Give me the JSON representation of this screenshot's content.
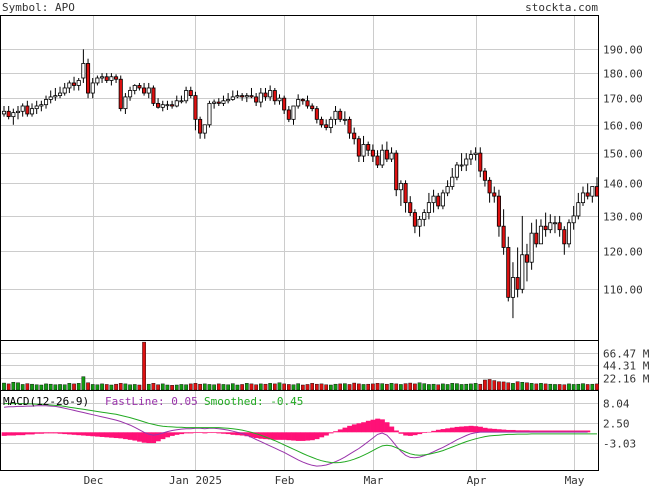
{
  "header": {
    "symbol_label": "Symbol: APO",
    "site": "stockta.com"
  },
  "price_axis": {
    "ticks": [
      190,
      180,
      170,
      160,
      150,
      140,
      130,
      120,
      110
    ],
    "tick_labels": [
      "190.00",
      "180.00",
      "170.00",
      "160.00",
      "150.00",
      "140.00",
      "130.00",
      "120.00",
      "110.00"
    ],
    "log_scale": true,
    "range": [
      98,
      205
    ]
  },
  "volume_axis": {
    "tick_labels": [
      "66.47 M",
      "44.31 M",
      "22.16 M"
    ],
    "ticks": [
      66.47,
      44.31,
      22.16
    ],
    "max": 88
  },
  "macd_panel": {
    "label": "MACD(12-26-9)",
    "fast_label": "FastLine: 0.05",
    "smoothed_label": "Smoothed: -0.45",
    "tick_labels": [
      "8.04",
      "2.50",
      "-3.03"
    ],
    "ticks": [
      8.04,
      2.5,
      -3.03
    ],
    "range": [
      -10.5,
      11.5
    ],
    "colors": {
      "fast": "#9933aa",
      "smoothed": "#22aa22",
      "histogram": "#ff1177",
      "label": "#000000"
    }
  },
  "x_axis": {
    "labels": [
      "Dec",
      "Jan 2025",
      "Feb",
      "Mar",
      "Apr",
      "May"
    ],
    "label_dates": [
      "2024-12-01",
      "2025-01-02",
      "2025-02-01",
      "2025-03-01",
      "2025-04-01",
      "2025-05-01"
    ]
  },
  "colors": {
    "up_candle": "#ffffff",
    "down_candle": "#dd1111",
    "volume_up": "#119911",
    "volume_down": "#dd1111",
    "grid": "#cccccc",
    "text": "#333333",
    "frame": "#000000"
  },
  "chart_data": {
    "type": "candlestick",
    "title": "Symbol: APO",
    "date_range": [
      "2024-11-01",
      "2025-05-08"
    ],
    "ohlc": {
      "dates": [
        "2024-11-01",
        "2024-11-04",
        "2024-11-05",
        "2024-11-06",
        "2024-11-07",
        "2024-11-08",
        "2024-11-11",
        "2024-11-12",
        "2024-11-13",
        "2024-11-14",
        "2024-11-15",
        "2024-11-18",
        "2024-11-19",
        "2024-11-20",
        "2024-11-21",
        "2024-11-22",
        "2024-11-25",
        "2024-11-26",
        "2024-11-27",
        "2024-11-29",
        "2024-12-02",
        "2024-12-03",
        "2024-12-04",
        "2024-12-05",
        "2024-12-06",
        "2024-12-09",
        "2024-12-10",
        "2024-12-11",
        "2024-12-12",
        "2024-12-13",
        "2024-12-16",
        "2024-12-17",
        "2024-12-18",
        "2024-12-19",
        "2024-12-20",
        "2024-12-23",
        "2024-12-24",
        "2024-12-26",
        "2024-12-27",
        "2024-12-30",
        "2024-12-31",
        "2025-01-02",
        "2025-01-03",
        "2025-01-06",
        "2025-01-07",
        "2025-01-08",
        "2025-01-10",
        "2025-01-13",
        "2025-01-14",
        "2025-01-15",
        "2025-01-16",
        "2025-01-17",
        "2025-01-21",
        "2025-01-22",
        "2025-01-23",
        "2025-01-24",
        "2025-01-27",
        "2025-01-28",
        "2025-01-29",
        "2025-01-30",
        "2025-01-31",
        "2025-02-03",
        "2025-02-04",
        "2025-02-05",
        "2025-02-06",
        "2025-02-07",
        "2025-02-10",
        "2025-02-11",
        "2025-02-12",
        "2025-02-13",
        "2025-02-14",
        "2025-02-18",
        "2025-02-19",
        "2025-02-20",
        "2025-02-21",
        "2025-02-24",
        "2025-02-25",
        "2025-02-26",
        "2025-02-27",
        "2025-02-28",
        "2025-03-03",
        "2025-03-04",
        "2025-03-05",
        "2025-03-06",
        "2025-03-07",
        "2025-03-10",
        "2025-03-11",
        "2025-03-12",
        "2025-03-13",
        "2025-03-14",
        "2025-03-17",
        "2025-03-18",
        "2025-03-19",
        "2025-03-20",
        "2025-03-21",
        "2025-03-24",
        "2025-03-25",
        "2025-03-26",
        "2025-03-27",
        "2025-03-28",
        "2025-03-31",
        "2025-04-01",
        "2025-04-02",
        "2025-04-03",
        "2025-04-04",
        "2025-04-07",
        "2025-04-08",
        "2025-04-09",
        "2025-04-10",
        "2025-04-11",
        "2025-04-14",
        "2025-04-15",
        "2025-04-16",
        "2025-04-17",
        "2025-04-21",
        "2025-04-22",
        "2025-04-23",
        "2025-04-24",
        "2025-04-25",
        "2025-04-28",
        "2025-04-29",
        "2025-04-30",
        "2025-05-01",
        "2025-05-02",
        "2025-05-05",
        "2025-05-06",
        "2025-05-07",
        "2025-05-08"
      ],
      "open": [
        164.0,
        165.0,
        163.0,
        164.5,
        165.0,
        167.0,
        164.0,
        166.0,
        167.0,
        167.5,
        169.5,
        170.5,
        171.0,
        172.0,
        174.0,
        176.0,
        175.0,
        178.0,
        184.0,
        172.0,
        176.0,
        178.0,
        178.5,
        177.0,
        178.5,
        177.5,
        166.0,
        170.5,
        173.0,
        175.0,
        174.0,
        172.0,
        174.0,
        168.0,
        166.5,
        167.5,
        167.5,
        167.0,
        169.0,
        169.0,
        173.0,
        171.0,
        162.0,
        157.0,
        160.0,
        168.0,
        168.5,
        168.0,
        169.0,
        169.5,
        170.5,
        171.0,
        170.5,
        171.0,
        170.5,
        168.5,
        172.0,
        170.5,
        173.0,
        169.0,
        170.0,
        165.5,
        162.0,
        167.0,
        169.5,
        169.0,
        167.0,
        166.0,
        162.0,
        160.0,
        159.0,
        162.0,
        165.0,
        162.0,
        162.0,
        157.0,
        155.0,
        149.0,
        153.0,
        151.0,
        149.0,
        146.0,
        151.0,
        148.0,
        150.0,
        138.0,
        140.0,
        134.0,
        131.0,
        127.0,
        129.0,
        131.0,
        134.0,
        136.0,
        133.0,
        137.0,
        139.0,
        142.0,
        146.0,
        146.0,
        148.0,
        149.5,
        150.0,
        144.0,
        141.0,
        137.0,
        136.0,
        127.0,
        121.0,
        108.0,
        113.0,
        110.0,
        119.0,
        117.0,
        125.0,
        122.0,
        127.0,
        126.0,
        128.0,
        128.0,
        126.0,
        122.0,
        128.0,
        130.0,
        134.0,
        137.0,
        136.0,
        139.0
      ],
      "high": [
        167.0,
        167.0,
        166.0,
        167.0,
        168.0,
        169.0,
        168.0,
        169.0,
        169.0,
        171.0,
        173.0,
        174.0,
        174.5,
        176.0,
        177.0,
        178.5,
        178.0,
        190.0,
        186.0,
        178.0,
        179.0,
        180.0,
        180.0,
        180.0,
        179.5,
        179.0,
        172.0,
        174.5,
        175.5,
        176.0,
        176.0,
        176.0,
        175.0,
        170.0,
        169.0,
        169.0,
        169.0,
        171.0,
        171.0,
        174.5,
        174.5,
        172.5,
        163.0,
        160.0,
        169.0,
        169.5,
        170.0,
        171.0,
        172.0,
        173.0,
        173.0,
        172.0,
        172.0,
        174.0,
        172.0,
        174.0,
        174.0,
        175.0,
        174.0,
        171.5,
        171.0,
        167.0,
        167.0,
        171.5,
        170.0,
        171.0,
        168.0,
        167.0,
        163.0,
        162.0,
        163.0,
        167.0,
        166.0,
        165.0,
        163.0,
        159.0,
        156.0,
        156.0,
        154.0,
        153.0,
        151.0,
        153.0,
        154.0,
        152.0,
        151.0,
        141.0,
        141.0,
        136.0,
        132.0,
        130.0,
        132.0,
        137.0,
        138.0,
        137.0,
        138.0,
        141.0,
        145.0,
        147.0,
        150.0,
        150.0,
        151.0,
        152.0,
        152.0,
        145.0,
        142.0,
        139.0,
        138.0,
        132.0,
        124.0,
        117.0,
        121.0,
        130.0,
        122.0,
        128.0,
        129.0,
        129.0,
        131.0,
        130.5,
        130.0,
        130.0,
        127.0,
        129.0,
        133.0,
        137.0,
        139.0,
        140.0,
        139.0,
        142.0
      ],
      "low": [
        163.0,
        162.0,
        160.0,
        162.0,
        163.0,
        163.0,
        163.0,
        164.0,
        165.0,
        166.0,
        168.0,
        169.0,
        170.0,
        171.0,
        172.0,
        173.0,
        173.0,
        176.0,
        170.0,
        170.0,
        175.0,
        176.0,
        176.0,
        175.0,
        176.0,
        165.0,
        164.0,
        169.0,
        171.5,
        173.0,
        171.0,
        170.0,
        167.0,
        166.0,
        165.0,
        165.5,
        166.0,
        166.5,
        168.0,
        168.0,
        170.0,
        158.0,
        155.0,
        155.0,
        159.0,
        166.0,
        167.0,
        167.0,
        168.0,
        169.0,
        170.0,
        169.0,
        168.5,
        170.0,
        167.0,
        166.5,
        169.0,
        169.0,
        167.5,
        167.5,
        164.0,
        161.0,
        160.0,
        166.0,
        167.5,
        166.0,
        165.0,
        160.5,
        159.0,
        158.0,
        157.0,
        160.0,
        161.0,
        160.0,
        155.0,
        153.0,
        147.0,
        147.0,
        149.0,
        147.0,
        145.0,
        145.0,
        147.0,
        147.0,
        136.0,
        133.0,
        131.0,
        130.0,
        125.0,
        124.0,
        127.0,
        129.0,
        131.0,
        132.0,
        132.0,
        136.0,
        138.0,
        141.0,
        144.0,
        144.0,
        146.0,
        147.5,
        142.0,
        139.0,
        134.0,
        134.0,
        124.0,
        119.0,
        107.0,
        103.0,
        108.0,
        109.0,
        112.0,
        115.0,
        121.0,
        122.0,
        124.0,
        125.0,
        125.0,
        124.0,
        119.0,
        121.0,
        126.0,
        129.0,
        133.0,
        135.0,
        134.0,
        137.0
      ],
      "close": [
        165.0,
        163.0,
        164.5,
        165.0,
        167.0,
        164.0,
        166.0,
        167.0,
        167.5,
        169.5,
        170.5,
        171.0,
        172.0,
        174.0,
        176.0,
        175.0,
        177.0,
        184.0,
        172.0,
        176.0,
        178.0,
        178.5,
        177.0,
        178.5,
        177.5,
        166.0,
        170.5,
        173.0,
        175.0,
        174.0,
        172.0,
        174.0,
        168.0,
        166.5,
        167.5,
        167.5,
        167.0,
        169.0,
        169.0,
        173.0,
        171.0,
        162.0,
        157.0,
        160.0,
        168.0,
        168.5,
        168.0,
        169.0,
        169.5,
        170.5,
        171.0,
        170.5,
        171.0,
        170.5,
        168.5,
        172.0,
        170.5,
        173.0,
        169.0,
        170.0,
        165.5,
        162.0,
        167.0,
        169.5,
        169.0,
        167.0,
        166.0,
        162.0,
        160.0,
        159.0,
        162.0,
        165.0,
        162.0,
        162.0,
        157.0,
        155.0,
        149.0,
        153.0,
        151.0,
        149.0,
        146.0,
        151.0,
        148.0,
        150.0,
        138.0,
        140.0,
        134.0,
        131.0,
        127.0,
        129.0,
        131.0,
        134.0,
        136.0,
        133.0,
        137.0,
        139.0,
        142.0,
        146.0,
        146.0,
        148.0,
        149.5,
        150.0,
        144.0,
        141.0,
        137.0,
        136.0,
        127.0,
        121.0,
        108.0,
        113.0,
        110.0,
        119.0,
        117.0,
        125.0,
        122.0,
        127.0,
        126.0,
        128.0,
        128.0,
        126.0,
        122.0,
        128.0,
        130.0,
        134.0,
        137.0,
        136.0,
        139.0,
        136.0
      ]
    },
    "volume_millions": [
      12.5,
      11.0,
      14.0,
      13.0,
      10.0,
      11.5,
      10.5,
      9.5,
      9.0,
      11.0,
      10.5,
      9.5,
      10.0,
      9.5,
      12.0,
      11.0,
      12.0,
      24.0,
      13.0,
      10.0,
      9.5,
      11.0,
      10.0,
      9.0,
      10.5,
      12.0,
      11.0,
      9.5,
      10.0,
      9.0,
      86.0,
      10.5,
      12.0,
      9.5,
      11.0,
      9.0,
      8.5,
      9.0,
      10.0,
      9.5,
      11.0,
      12.0,
      10.5,
      11.0,
      10.0,
      9.5,
      11.0,
      10.0,
      9.5,
      11.5,
      9.0,
      10.0,
      12.0,
      11.0,
      9.5,
      11.0,
      10.5,
      12.0,
      11.0,
      13.0,
      11.0,
      10.0,
      9.5,
      11.5,
      9.0,
      10.0,
      12.0,
      10.5,
      11.0,
      9.5,
      9.0,
      10.5,
      11.0,
      11.5,
      10.0,
      12.5,
      11.0,
      10.0,
      10.5,
      11.0,
      12.0,
      11.5,
      10.5,
      12.0,
      11.0,
      10.0,
      11.5,
      12.5,
      11.0,
      13.0,
      11.5,
      10.0,
      10.5,
      9.5,
      11.0,
      10.0,
      12.0,
      11.5,
      10.0,
      10.5,
      11.0,
      12.0,
      10.5,
      18.0,
      19.0,
      17.0,
      15.0,
      14.5,
      13.0,
      12.0,
      15.0,
      14.0,
      13.0,
      12.0,
      11.0,
      12.0,
      11.0,
      10.5,
      10.0,
      10.0,
      9.5,
      11.0,
      10.0,
      10.5,
      11.5,
      10.0,
      10.5,
      11.0
    ],
    "macd": {
      "fast": [
        7.0,
        7.1,
        7.1,
        7.2,
        7.2,
        7.3,
        7.3,
        7.4,
        7.4,
        7.4,
        7.3,
        7.2,
        7.0,
        6.7,
        6.4,
        6.1,
        5.8,
        5.5,
        5.2,
        4.9,
        4.6,
        4.3,
        4.0,
        3.7,
        3.4,
        3.0,
        2.5,
        2.0,
        1.4,
        0.7,
        0.0,
        -0.5,
        -0.8,
        -0.6,
        -0.2,
        0.2,
        0.5,
        0.7,
        0.9,
        1.0,
        1.0,
        1.1,
        1.1,
        1.0,
        1.1,
        1.1,
        1.0,
        0.8,
        0.6,
        0.3,
        0.0,
        -0.3,
        -0.8,
        -1.4,
        -2.0,
        -2.6,
        -3.2,
        -3.8,
        -4.4,
        -5.0,
        -5.6,
        -6.3,
        -7.0,
        -7.7,
        -8.3,
        -8.8,
        -9.2,
        -9.4,
        -9.3,
        -9.1,
        -8.7,
        -8.2,
        -7.6,
        -6.9,
        -6.1,
        -5.3,
        -4.5,
        -3.6,
        -2.6,
        -1.6,
        -0.6,
        -0.2,
        -0.8,
        -2.2,
        -3.8,
        -5.3,
        -6.4,
        -7.0,
        -7.1,
        -6.9,
        -6.5,
        -6.0,
        -5.4,
        -4.8,
        -4.2,
        -3.5,
        -2.8,
        -2.1,
        -1.5,
        -0.9,
        -0.4,
        -0.1,
        0.05,
        0.05,
        0.05,
        0.05,
        0.05,
        0.05,
        0.05,
        0.05,
        0.05,
        0.05,
        0.05,
        0.05,
        0.05,
        0.05,
        0.05,
        0.05,
        0.05,
        0.05,
        0.05,
        0.05,
        0.05,
        0.05,
        0.05,
        0.05
      ],
      "smoothed": [
        8.0,
        8.0,
        8.0,
        8.0,
        8.0,
        7.9,
        7.9,
        7.8,
        7.8,
        7.7,
        7.6,
        7.5,
        7.4,
        7.2,
        7.0,
        6.8,
        6.6,
        6.4,
        6.2,
        6.0,
        5.8,
        5.6,
        5.4,
        5.2,
        5.0,
        4.7,
        4.4,
        4.1,
        3.7,
        3.3,
        2.9,
        2.5,
        2.2,
        1.9,
        1.7,
        1.6,
        1.5,
        1.4,
        1.4,
        1.3,
        1.3,
        1.3,
        1.3,
        1.3,
        1.3,
        1.3,
        1.3,
        1.2,
        1.1,
        1.0,
        0.8,
        0.6,
        0.3,
        0.0,
        -0.4,
        -0.8,
        -1.3,
        -1.8,
        -2.3,
        -2.9,
        -3.5,
        -4.1,
        -4.7,
        -5.3,
        -5.9,
        -6.5,
        -7.0,
        -7.5,
        -7.9,
        -8.2,
        -8.4,
        -8.5,
        -8.4,
        -8.2,
        -7.9,
        -7.5,
        -7.0,
        -6.4,
        -5.8,
        -5.1,
        -4.4,
        -3.8,
        -3.6,
        -3.8,
        -4.3,
        -4.9,
        -5.5,
        -6.0,
        -6.3,
        -6.4,
        -6.3,
        -6.1,
        -5.8,
        -5.5,
        -5.1,
        -4.6,
        -4.1,
        -3.6,
        -3.1,
        -2.6,
        -2.2,
        -1.8,
        -1.5,
        -1.2,
        -1.0,
        -0.9,
        -0.8,
        -0.7,
        -0.6,
        -0.6,
        -0.5,
        -0.5,
        -0.5,
        -0.45,
        -0.45,
        -0.45,
        -0.45,
        -0.45,
        -0.45,
        -0.45,
        -0.45,
        -0.45,
        -0.45,
        -0.45,
        -0.45,
        -0.45,
        -0.45,
        -0.45
      ]
    }
  }
}
